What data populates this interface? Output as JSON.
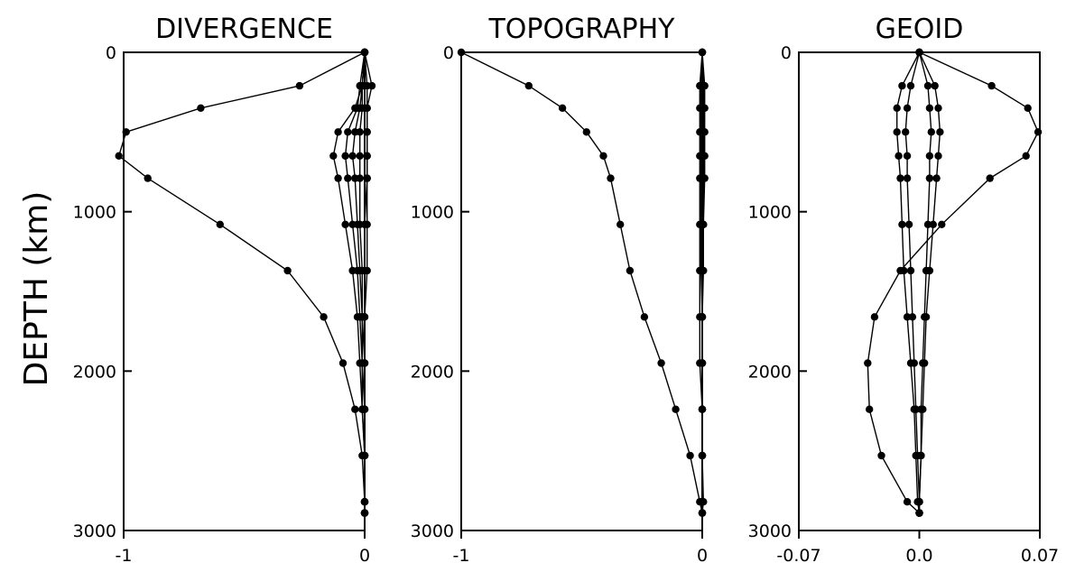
{
  "figure": {
    "ylabel": "DEPTH (km)",
    "line_color": "#000000"
  },
  "chart_data": [
    {
      "type": "line",
      "title": "DIVERGENCE",
      "xlim": [
        -1,
        0
      ],
      "ylim": [
        3000,
        0
      ],
      "xticks": [
        "-1",
        "0"
      ],
      "yticks": [
        "0",
        "1000",
        "2000",
        "3000"
      ],
      "ylabel": "DEPTH (km)",
      "grid": false,
      "depths": [
        0,
        210,
        350,
        500,
        650,
        790,
        1080,
        1370,
        1660,
        1950,
        2240,
        2530,
        2820,
        2890
      ],
      "series": [
        {
          "values": [
            0,
            -0.27,
            -0.68,
            -0.99,
            -1.02,
            -0.9,
            -0.6,
            -0.32,
            -0.17,
            -0.09,
            -0.04,
            -0.01,
            0,
            0
          ]
        },
        {
          "values": [
            0,
            -0.01,
            -0.04,
            -0.11,
            -0.13,
            -0.11,
            -0.08,
            -0.05,
            -0.03,
            -0.02,
            -0.01,
            0,
            0,
            0
          ]
        },
        {
          "values": [
            0,
            -0.02,
            -0.03,
            -0.07,
            -0.08,
            -0.07,
            -0.05,
            -0.03,
            -0.02,
            -0.01,
            -0.01,
            0,
            0,
            0
          ]
        },
        {
          "values": [
            0,
            -0.01,
            -0.02,
            -0.04,
            -0.05,
            -0.04,
            -0.03,
            -0.02,
            -0.01,
            -0.01,
            0,
            0,
            0,
            0
          ]
        },
        {
          "values": [
            0,
            -0.01,
            -0.01,
            -0.02,
            -0.02,
            -0.02,
            -0.02,
            -0.01,
            -0.01,
            0,
            0,
            0,
            0,
            0
          ]
        },
        {
          "values": [
            0,
            0.01,
            0.01,
            0.01,
            0.01,
            0.01,
            0.01,
            0.01,
            0,
            0,
            0,
            0,
            0,
            0
          ]
        },
        {
          "values": [
            0,
            0.03,
            0.01,
            0.01,
            0.01,
            0.01,
            0,
            0,
            0,
            0,
            0,
            0,
            0,
            0
          ]
        }
      ]
    },
    {
      "type": "line",
      "title": "TOPOGRAPHY",
      "xlim": [
        -1,
        0
      ],
      "ylim": [
        3000,
        0
      ],
      "xticks": [
        "-1",
        "0"
      ],
      "yticks": [
        "0",
        "1000",
        "2000",
        "3000"
      ],
      "grid": false,
      "depths": [
        0,
        210,
        350,
        500,
        650,
        790,
        1080,
        1370,
        1660,
        1950,
        2240,
        2530,
        2820,
        2890
      ],
      "series": [
        {
          "values": [
            -1.0,
            -0.72,
            -0.58,
            -0.48,
            -0.41,
            -0.38,
            -0.34,
            -0.3,
            -0.24,
            -0.17,
            -0.11,
            -0.05,
            -0.01,
            0
          ]
        },
        {
          "values": [
            0,
            -0.01,
            -0.01,
            -0.01,
            -0.01,
            -0.01,
            -0.01,
            -0.01,
            -0.01,
            -0.01,
            0,
            0,
            0,
            0
          ]
        },
        {
          "values": [
            0,
            -0.005,
            -0.005,
            -0.005,
            -0.005,
            -0.005,
            -0.005,
            -0.005,
            0,
            0,
            0,
            0,
            0,
            0
          ]
        },
        {
          "values": [
            0,
            0.005,
            0.005,
            0.005,
            0.005,
            0.005,
            0.005,
            0,
            0,
            0,
            0,
            0,
            0,
            0
          ]
        },
        {
          "values": [
            0,
            0.01,
            0.01,
            0.01,
            0.01,
            0.01,
            0.005,
            0.005,
            0,
            0,
            0,
            0,
            0,
            0
          ]
        },
        {
          "values": [
            0,
            0,
            0,
            0,
            0,
            0,
            0,
            0,
            0,
            0,
            0,
            0,
            0.005,
            0
          ]
        }
      ]
    },
    {
      "type": "line",
      "title": "GEOID",
      "xlim": [
        -0.07,
        0.07
      ],
      "ylim": [
        3000,
        0
      ],
      "xticks": [
        "-0.07",
        "0.0",
        "0.07"
      ],
      "yticks": [
        "0",
        "1000",
        "2000",
        "3000"
      ],
      "grid": false,
      "depths": [
        0,
        210,
        350,
        500,
        650,
        790,
        1080,
        1370,
        1660,
        1950,
        2240,
        2530,
        2820,
        2890
      ],
      "series": [
        {
          "values": [
            0,
            0.042,
            0.063,
            0.069,
            0.062,
            0.041,
            0.013,
            -0.011,
            -0.026,
            -0.03,
            -0.029,
            -0.022,
            -0.007,
            0
          ]
        },
        {
          "values": [
            0,
            -0.01,
            -0.013,
            -0.013,
            -0.012,
            -0.011,
            -0.01,
            -0.009,
            -0.007,
            -0.005,
            -0.003,
            -0.002,
            -0.001,
            0
          ]
        },
        {
          "values": [
            0,
            -0.005,
            -0.007,
            -0.008,
            -0.007,
            -0.007,
            -0.006,
            -0.005,
            -0.004,
            -0.003,
            -0.002,
            -0.001,
            0,
            0
          ]
        },
        {
          "values": [
            0,
            0.005,
            0.006,
            0.007,
            0.006,
            0.006,
            0.005,
            0.004,
            0.003,
            0.002,
            0.001,
            0.001,
            0,
            0
          ]
        },
        {
          "values": [
            0,
            0.009,
            0.011,
            0.012,
            0.011,
            0.01,
            0.008,
            0.006,
            0.004,
            0.003,
            0.002,
            0.001,
            0,
            0
          ]
        }
      ]
    }
  ]
}
